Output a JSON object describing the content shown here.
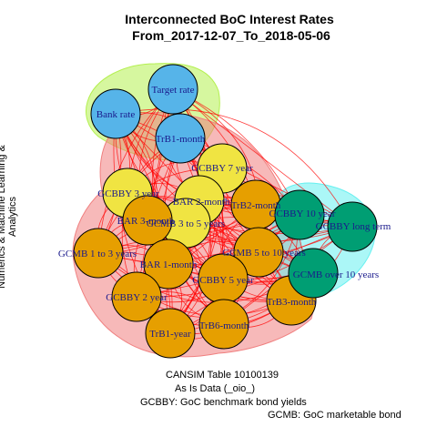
{
  "title_line1": "Interconnected BoC Interest Rates",
  "title_line2": "From_2017-12-07_To_2018-05-06",
  "side_label": "Numerics & Machine Learning & Analytics",
  "captions": {
    "line1": "CANSIM Table 10100139",
    "line2": "As Is Data (_oio_)",
    "line3": "GCBBY: GoC benchmark bond yields",
    "line4": "GCMB: GoC marketable bond"
  },
  "colors": {
    "blue_node": "#56b4e9",
    "yellow_node": "#f0e442",
    "orange_node": "#e69f00",
    "green_node": "#009e73",
    "edge": "#ff0000",
    "label": "#1a1a8c"
  },
  "clusters": [
    {
      "id": "blue",
      "color": "#b4f050"
    },
    {
      "id": "orange",
      "color": "#f08080"
    },
    {
      "id": "green",
      "color": "#66f0f0"
    }
  ],
  "nodes": [
    {
      "id": "target_rate",
      "label": "Target rate",
      "group": "blue"
    },
    {
      "id": "bank_rate",
      "label": "Bank rate",
      "group": "blue"
    },
    {
      "id": "trb1_month",
      "label": "TrB1-month",
      "group": "blue"
    },
    {
      "id": "gcbby_7",
      "label": "GCBBY 7 year",
      "group": "yellow"
    },
    {
      "id": "gcbby_3",
      "label": "GCBBY 3 year",
      "group": "yellow"
    },
    {
      "id": "bar_2",
      "label": "BAR 2-month",
      "group": "yellow"
    },
    {
      "id": "gcmb_3_5",
      "label": "GCMB 3 to 5 years",
      "group": "yellow"
    },
    {
      "id": "trb2",
      "label": "TrB2-month",
      "group": "orange"
    },
    {
      "id": "bar_3",
      "label": "BAR 3-month",
      "group": "orange"
    },
    {
      "id": "gcmb_1_3",
      "label": "GCMB 1 to 3 years",
      "group": "orange"
    },
    {
      "id": "bar_1",
      "label": "BAR 1-month",
      "group": "orange"
    },
    {
      "id": "gcmb_5_10",
      "label": "GCMB 5 to 10 years",
      "group": "orange"
    },
    {
      "id": "gcbby_5",
      "label": "GCBBY 5 year",
      "group": "orange"
    },
    {
      "id": "gcbby_2",
      "label": "GCBBY 2 year",
      "group": "orange"
    },
    {
      "id": "trb3",
      "label": "TrB3-month",
      "group": "orange"
    },
    {
      "id": "trb6",
      "label": "TrB6-month",
      "group": "orange"
    },
    {
      "id": "trb1_year",
      "label": "TrB1-year",
      "group": "orange"
    },
    {
      "id": "gcbby_10",
      "label": "GCBBY 10 year",
      "group": "green"
    },
    {
      "id": "gcbby_long",
      "label": "GCBBY long term",
      "group": "green"
    },
    {
      "id": "gcmb_over10",
      "label": "GCMB over 10 years",
      "group": "green"
    }
  ]
}
